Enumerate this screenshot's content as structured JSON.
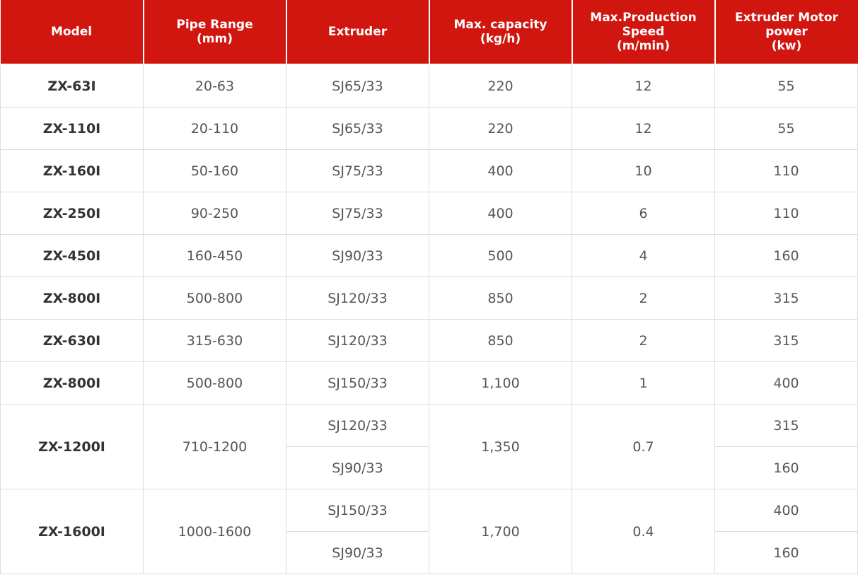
{
  "table": {
    "header": [
      [
        "Model"
      ],
      [
        "Pipe Range",
        "(mm)"
      ],
      [
        "Extruder"
      ],
      [
        "Max. capacity",
        "(kg/h)"
      ],
      [
        "Max.Production",
        "Speed",
        "(m/min)"
      ],
      [
        "Extruder Motor",
        "power",
        "(kw)"
      ]
    ],
    "rows": [
      {
        "model": "ZX-63I",
        "pipe_range": "20-63",
        "extruders": [
          "SJ65/33"
        ],
        "capacity": "220",
        "speed": "12",
        "power": [
          "55"
        ]
      },
      {
        "model": "ZX-110I",
        "pipe_range": "20-110",
        "extruders": [
          "SJ65/33"
        ],
        "capacity": "220",
        "speed": "12",
        "power": [
          "55"
        ]
      },
      {
        "model": "ZX-160I",
        "pipe_range": "50-160",
        "extruders": [
          "SJ75/33"
        ],
        "capacity": "400",
        "speed": "10",
        "power": [
          "110"
        ]
      },
      {
        "model": "ZX-250I",
        "pipe_range": "90-250",
        "extruders": [
          "SJ75/33"
        ],
        "capacity": "400",
        "speed": "6",
        "power": [
          "110"
        ]
      },
      {
        "model": "ZX-450I",
        "pipe_range": "160-450",
        "extruders": [
          "SJ90/33"
        ],
        "capacity": "500",
        "speed": "4",
        "power": [
          "160"
        ]
      },
      {
        "model": "ZX-800I",
        "pipe_range": "500-800",
        "extruders": [
          "SJ120/33"
        ],
        "capacity": "850",
        "speed": "2",
        "power": [
          "315"
        ]
      },
      {
        "model": "ZX-630I",
        "pipe_range": "315-630",
        "extruders": [
          "SJ120/33"
        ],
        "capacity": "850",
        "speed": "2",
        "power": [
          "315"
        ]
      },
      {
        "model": "ZX-800I",
        "pipe_range": "500-800",
        "extruders": [
          "SJ150/33"
        ],
        "capacity": "1,100",
        "speed": "1",
        "power": [
          "400"
        ]
      },
      {
        "model": "ZX-1200I",
        "pipe_range": "710-1200",
        "extruders": [
          "SJ120/33",
          "SJ90/33"
        ],
        "capacity": "1,350",
        "speed": "0.7",
        "power": [
          "315",
          "160"
        ]
      },
      {
        "model": "ZX-1600I",
        "pipe_range": "1000-1600",
        "extruders": [
          "SJ150/33",
          "SJ90/33"
        ],
        "capacity": "1,700",
        "speed": "0.4",
        "power": [
          "400",
          "160"
        ]
      }
    ]
  }
}
